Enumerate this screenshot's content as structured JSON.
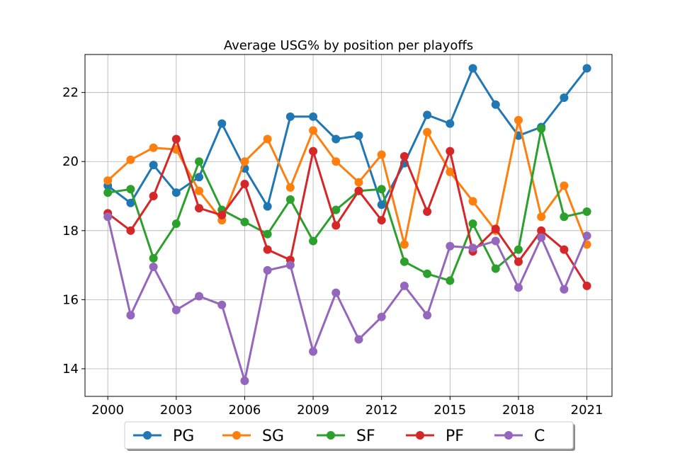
{
  "chart_data": {
    "type": "line",
    "title": "Average USG% by position per playoffs",
    "xlabel": "",
    "ylabel": "",
    "x": [
      2000,
      2001,
      2002,
      2003,
      2004,
      2005,
      2006,
      2007,
      2008,
      2009,
      2010,
      2011,
      2012,
      2013,
      2014,
      2015,
      2016,
      2017,
      2018,
      2019,
      2020,
      2021
    ],
    "xticks": [
      2000,
      2003,
      2006,
      2009,
      2012,
      2015,
      2018,
      2021
    ],
    "xtick_labels": [
      "2000",
      "2003",
      "2006",
      "2009",
      "2012",
      "2015",
      "2018",
      "2021"
    ],
    "yticks": [
      14,
      16,
      18,
      20,
      22
    ],
    "ytick_labels": [
      "14",
      "16",
      "18",
      "20",
      "22"
    ],
    "xlim": [
      1999.0,
      2022.1
    ],
    "ylim": [
      13.2,
      23.1
    ],
    "grid": true,
    "legend_position": "bottom-center",
    "series": [
      {
        "name": "PG",
        "color": "#1f77b4",
        "values": [
          19.3,
          18.8,
          19.9,
          19.1,
          19.55,
          21.1,
          19.8,
          18.7,
          21.3,
          21.3,
          20.65,
          20.75,
          18.75,
          19.95,
          21.35,
          21.1,
          22.7,
          21.65,
          20.75,
          21.0,
          21.85,
          22.7
        ]
      },
      {
        "name": "SG",
        "color": "#ff7f0e",
        "values": [
          19.45,
          20.05,
          20.4,
          20.35,
          19.15,
          18.3,
          20.0,
          20.65,
          19.25,
          20.9,
          20.0,
          19.4,
          20.2,
          17.6,
          20.85,
          19.7,
          18.85,
          18.0,
          21.2,
          18.4,
          19.3,
          17.6
        ]
      },
      {
        "name": "SF",
        "color": "#2ca02c",
        "values": [
          19.1,
          19.2,
          17.2,
          18.2,
          20.0,
          18.6,
          18.25,
          17.9,
          18.9,
          17.7,
          18.6,
          19.15,
          19.2,
          17.1,
          16.75,
          16.55,
          18.2,
          16.9,
          17.45,
          20.95,
          18.4,
          18.55
        ]
      },
      {
        "name": "PF",
        "color": "#d62728",
        "values": [
          18.5,
          18.0,
          19.0,
          20.65,
          18.65,
          18.45,
          19.35,
          17.45,
          17.15,
          20.3,
          18.15,
          19.15,
          18.3,
          20.15,
          18.55,
          20.3,
          17.4,
          18.05,
          17.1,
          18.0,
          17.45,
          16.4
        ]
      },
      {
        "name": "C",
        "color": "#9467bd",
        "values": [
          18.4,
          15.55,
          16.95,
          15.7,
          16.1,
          15.85,
          13.65,
          16.85,
          17.0,
          14.5,
          16.2,
          14.85,
          15.5,
          16.4,
          15.55,
          17.55,
          17.5,
          17.7,
          16.35,
          17.8,
          16.3,
          17.85
        ]
      }
    ]
  }
}
